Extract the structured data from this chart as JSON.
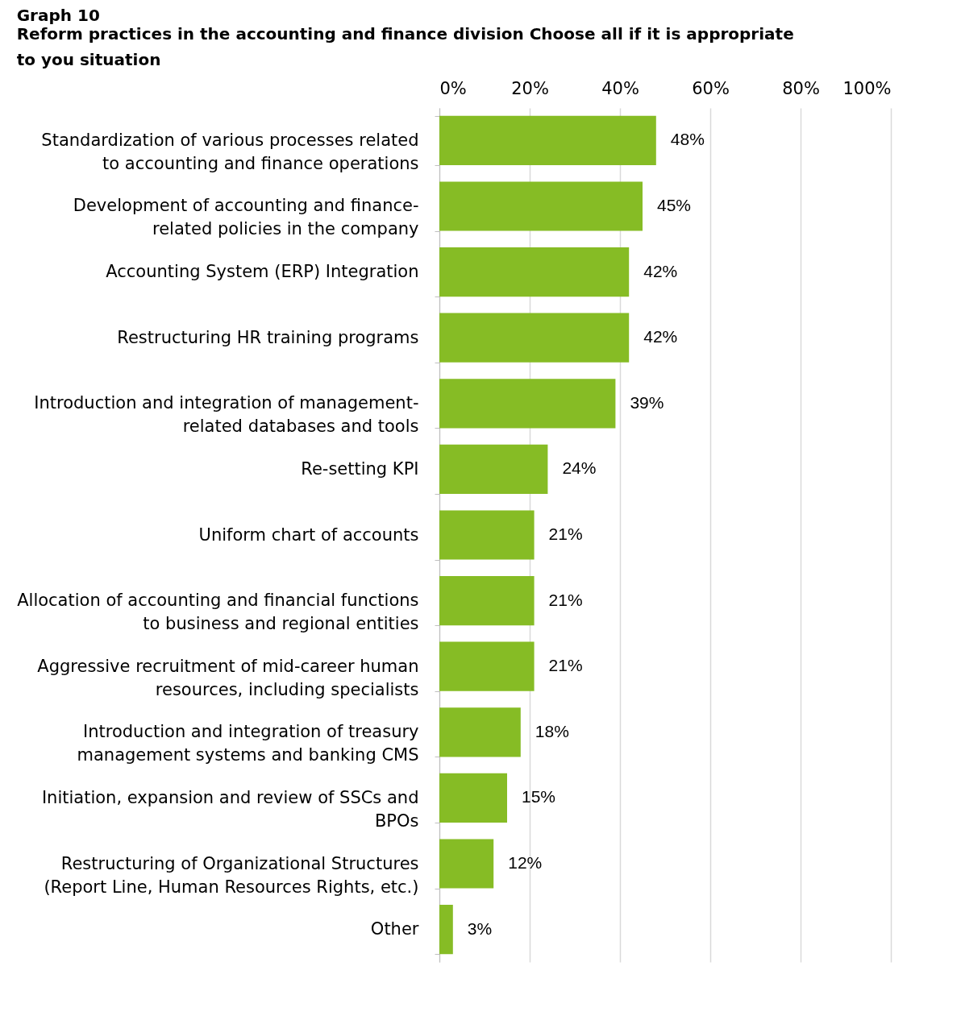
{
  "chart_data": {
    "type": "bar",
    "orientation": "horizontal",
    "title": "Graph 10",
    "subtitle": "Reform practices in the accounting and finance division Choose all if it is appropriate\nto you situation",
    "categories": [
      "Standardization of various processes related\nto accounting and finance operations",
      "Development of accounting and finance-\nrelated policies in the company",
      "Accounting System (ERP) Integration",
      "Restructuring HR training programs",
      "Introduction and integration of management-\nrelated databases and tools",
      "Re-setting KPI",
      "Uniform chart of accounts",
      "Allocation of accounting and financial functions\nto business and regional entities",
      "Aggressive recruitment of mid-career human\nresources, including specialists",
      "Introduction and integration of treasury\nmanagement systems and banking CMS",
      "Initiation, expansion and review of SSCs and\nBPOs",
      "Restructuring of Organizational Structures\n(Report Line, Human Resources Rights, etc.)",
      "Other"
    ],
    "values": [
      48,
      45,
      42,
      42,
      39,
      24,
      21,
      21,
      21,
      18,
      15,
      12,
      3
    ],
    "value_labels": [
      "48%",
      "45%",
      "42%",
      "42%",
      "39%",
      "24%",
      "21%",
      "21%",
      "21%",
      "18%",
      "15%",
      "12%",
      "3%"
    ],
    "color": "#86bc25",
    "xlim": [
      0,
      100
    ],
    "xticks": [
      {
        "value": 0,
        "label": "0%"
      },
      {
        "value": 20,
        "label": "20%"
      },
      {
        "value": 40,
        "label": "40%"
      },
      {
        "value": 60,
        "label": "60%"
      },
      {
        "value": 80,
        "label": "80%"
      },
      {
        "value": 100,
        "label": "100%"
      }
    ],
    "grid": "x"
  }
}
